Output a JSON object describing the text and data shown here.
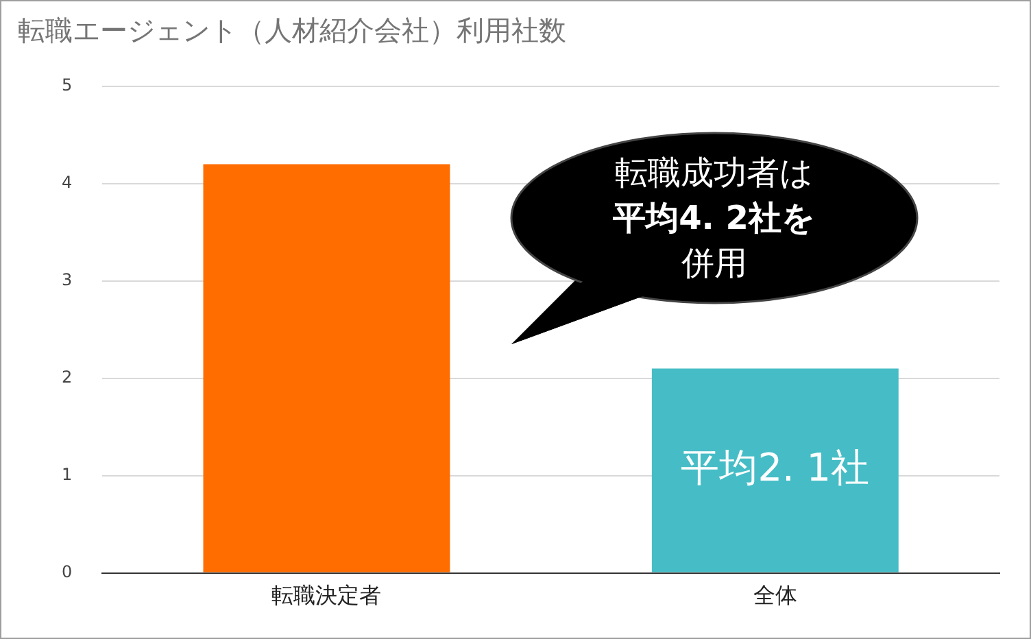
{
  "chart_data": {
    "type": "bar",
    "title": "転職エージェント（人材紹介会社）利用社数",
    "categories": [
      "転職決定者",
      "全体"
    ],
    "values": [
      4.2,
      2.1
    ],
    "colors": [
      "#ff6d00",
      "#46bdc6"
    ],
    "ylim": [
      0,
      5
    ],
    "yticks": [
      0,
      1,
      2,
      3,
      4,
      5
    ],
    "grid": "y",
    "legend": false,
    "annotations": [
      "転職成功者は",
      "平均4. 2社を",
      "併用",
      "平均2. 1社"
    ]
  }
}
